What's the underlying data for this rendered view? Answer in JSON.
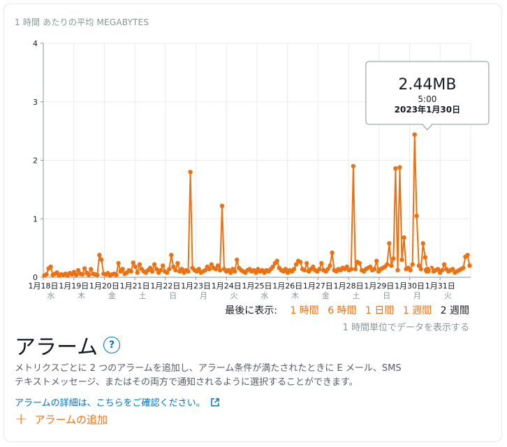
{
  "header": {
    "unit_label": "1 時間 あたりの平均 MEGABYTES"
  },
  "chart_data": {
    "type": "line",
    "ylim": [
      0,
      4
    ],
    "y_ticks": [
      "0",
      "1",
      "2",
      "3",
      "4"
    ],
    "x_tick_labels": [
      "1月18日",
      "1月19日",
      "1月20日",
      "1月21日",
      "1月22日",
      "1月23日",
      "1月24日",
      "1月25日",
      "1月26日",
      "1月27日",
      "1月28日",
      "1月29日",
      "1月30日",
      "1月31日"
    ],
    "weekday_labels": [
      "水",
      "木",
      "金",
      "土",
      "日",
      "月",
      "火",
      "水",
      "木",
      "金",
      "土",
      "日",
      "月",
      "火"
    ],
    "series": [
      {
        "values": [
          0.03,
          0.05,
          0.15,
          0.18,
          0.04,
          0.06,
          0.08,
          0.03,
          0.05,
          0.04,
          0.06,
          0.03,
          0.07,
          0.05,
          0.09,
          0.04,
          0.12,
          0.06,
          0.05,
          0.15,
          0.08,
          0.04,
          0.14,
          0.06,
          0.05,
          0.04,
          0.38,
          0.3,
          0.06,
          0.05,
          0.07,
          0.03,
          0.05,
          0.06,
          0.04,
          0.24,
          0.1,
          0.14,
          0.06,
          0.08,
          0.12,
          0.1,
          0.25,
          0.18,
          0.08,
          0.22,
          0.14,
          0.1,
          0.08,
          0.12,
          0.16,
          0.1,
          0.22,
          0.14,
          0.08,
          0.12,
          0.2,
          0.1,
          0.08,
          0.14,
          0.38,
          0.18,
          0.12,
          0.24,
          0.1,
          0.14,
          0.08,
          0.12,
          0.1,
          1.8,
          0.16,
          0.12,
          0.1,
          0.14,
          0.08,
          0.1,
          0.12,
          0.18,
          0.14,
          0.22,
          0.16,
          0.14,
          0.2,
          0.12,
          1.22,
          0.14,
          0.1,
          0.12,
          0.08,
          0.14,
          0.1,
          0.3,
          0.16,
          0.12,
          0.1,
          0.08,
          0.12,
          0.14,
          0.1,
          0.12,
          0.08,
          0.14,
          0.1,
          0.12,
          0.08,
          0.12,
          0.1,
          0.14,
          0.18,
          0.24,
          0.28,
          0.16,
          0.12,
          0.1,
          0.14,
          0.08,
          0.12,
          0.1,
          0.14,
          0.22,
          0.28,
          0.26,
          0.14,
          0.12,
          0.24,
          0.1,
          0.14,
          0.18,
          0.12,
          0.1,
          0.14,
          0.24,
          0.12,
          0.1,
          0.14,
          0.2,
          0.42,
          0.12,
          0.1,
          0.14,
          0.12,
          0.16,
          0.14,
          0.18,
          0.12,
          0.14,
          1.9,
          0.14,
          0.26,
          0.24,
          0.12,
          0.1,
          0.14,
          0.16,
          0.18,
          0.12,
          0.14,
          0.28,
          0.1,
          0.14,
          0.16,
          0.18,
          0.22,
          0.58,
          0.2,
          0.32,
          1.86,
          0.12,
          1.88,
          0.3,
          0.68,
          0.14,
          0.16,
          0.12,
          0.22,
          2.44,
          1.05,
          0.2,
          0.14,
          0.58,
          0.34,
          0.12,
          0.14,
          0.16,
          0.1,
          0.12,
          0.14,
          0.08,
          0.12,
          0.22,
          0.14,
          0.1,
          0.12,
          0.14,
          0.08,
          0.1,
          0.12,
          0.14,
          0.16,
          0.35,
          0.38,
          0.2
        ]
      }
    ],
    "tooltip": {
      "value": "2.44MB",
      "time": "5:00",
      "date": "2023年1月30日"
    },
    "highlight_index": 181,
    "line_color": "#ec7211",
    "grid": true
  },
  "range_selector": {
    "label": "最後に表示:",
    "options": [
      "1 時間",
      "6 時間",
      "1 日間",
      "1 週間",
      "2 週間"
    ],
    "selected": "2 週間"
  },
  "period_note": "1 時間単位でデータを表示する",
  "alarms": {
    "title": "アラーム",
    "help": "?",
    "description_line1": "メトリクスごとに 2 つのアラームを追加し、アラーム条件が満たされたときに E メール、SMS",
    "description_line2": "テキストメッセージ、またはその両方で通知されるように選択することができます。",
    "detail_link": "アラームの詳細は、こちらをご確認ください。",
    "add_label": "アラームの追加"
  }
}
